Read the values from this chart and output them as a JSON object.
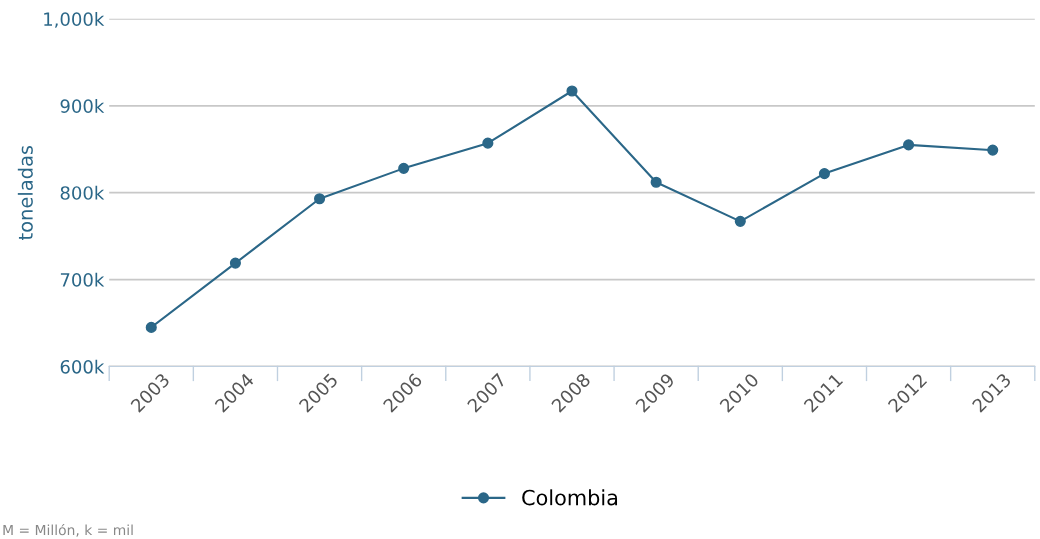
{
  "chart_data": {
    "type": "line",
    "ylabel": "toneladas",
    "categories": [
      "2003",
      "2004",
      "2005",
      "2006",
      "2007",
      "2008",
      "2009",
      "2010",
      "2011",
      "2012",
      "2013"
    ],
    "series": [
      {
        "name": "Colombia",
        "color": "#2b6788",
        "values": [
          645000,
          719000,
          793000,
          828000,
          857000,
          917000,
          812000,
          767000,
          822000,
          855000,
          849000
        ]
      }
    ],
    "ylim": [
      600000,
      1000000
    ],
    "yticks": [
      {
        "value": 600000,
        "label": "600k"
      },
      {
        "value": 700000,
        "label": "700k"
      },
      {
        "value": 800000,
        "label": "800k"
      },
      {
        "value": 900000,
        "label": "900k"
      },
      {
        "value": 1000000,
        "label": "1,000k"
      }
    ],
    "grid": "y",
    "legend": "bottom",
    "marker": "circle",
    "line_style": "solid",
    "annotations": [
      "M = Millón, k = mil"
    ]
  }
}
